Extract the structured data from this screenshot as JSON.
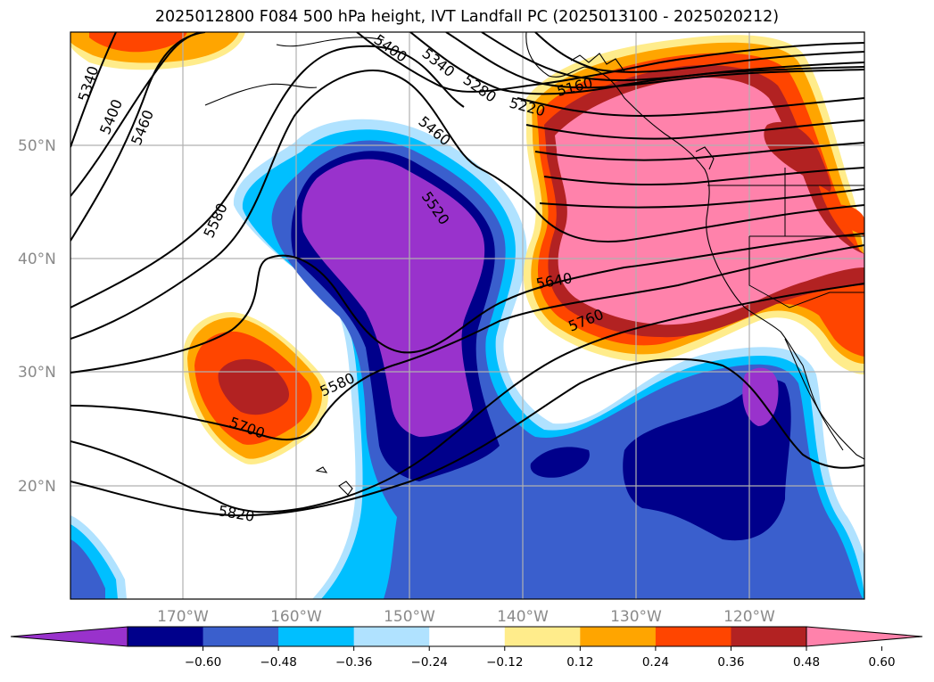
{
  "title": "2025012800 F084 500 hPa height, IVT Landfall PC (2025013100 - 2025020212)",
  "lat_labels": [
    "50°N",
    "40°N",
    "30°N",
    "20°N"
  ],
  "lon_labels": [
    "170°W",
    "160°W",
    "150°W",
    "140°W",
    "130°W",
    "120°W"
  ],
  "colorbar": {
    "ticks": [
      "−0.60",
      "−0.48",
      "−0.36",
      "−0.24",
      "−0.12",
      "0.12",
      "0.24",
      "0.36",
      "0.48",
      "0.60"
    ],
    "colors": [
      "#9932cc",
      "#00008b",
      "#3a5fcd",
      "#00bfff",
      "#b0e2ff",
      "#ffffff",
      "#ffec8b",
      "#ffa500",
      "#ff4500",
      "#b22222",
      "#ff82ab"
    ]
  },
  "height_contour_labels": [
    "5340",
    "5400",
    "5460",
    "5580",
    "5400",
    "5340",
    "5280",
    "5220",
    "5160",
    "5460",
    "5520",
    "5640",
    "5760",
    "5580",
    "5700",
    "5820"
  ]
}
